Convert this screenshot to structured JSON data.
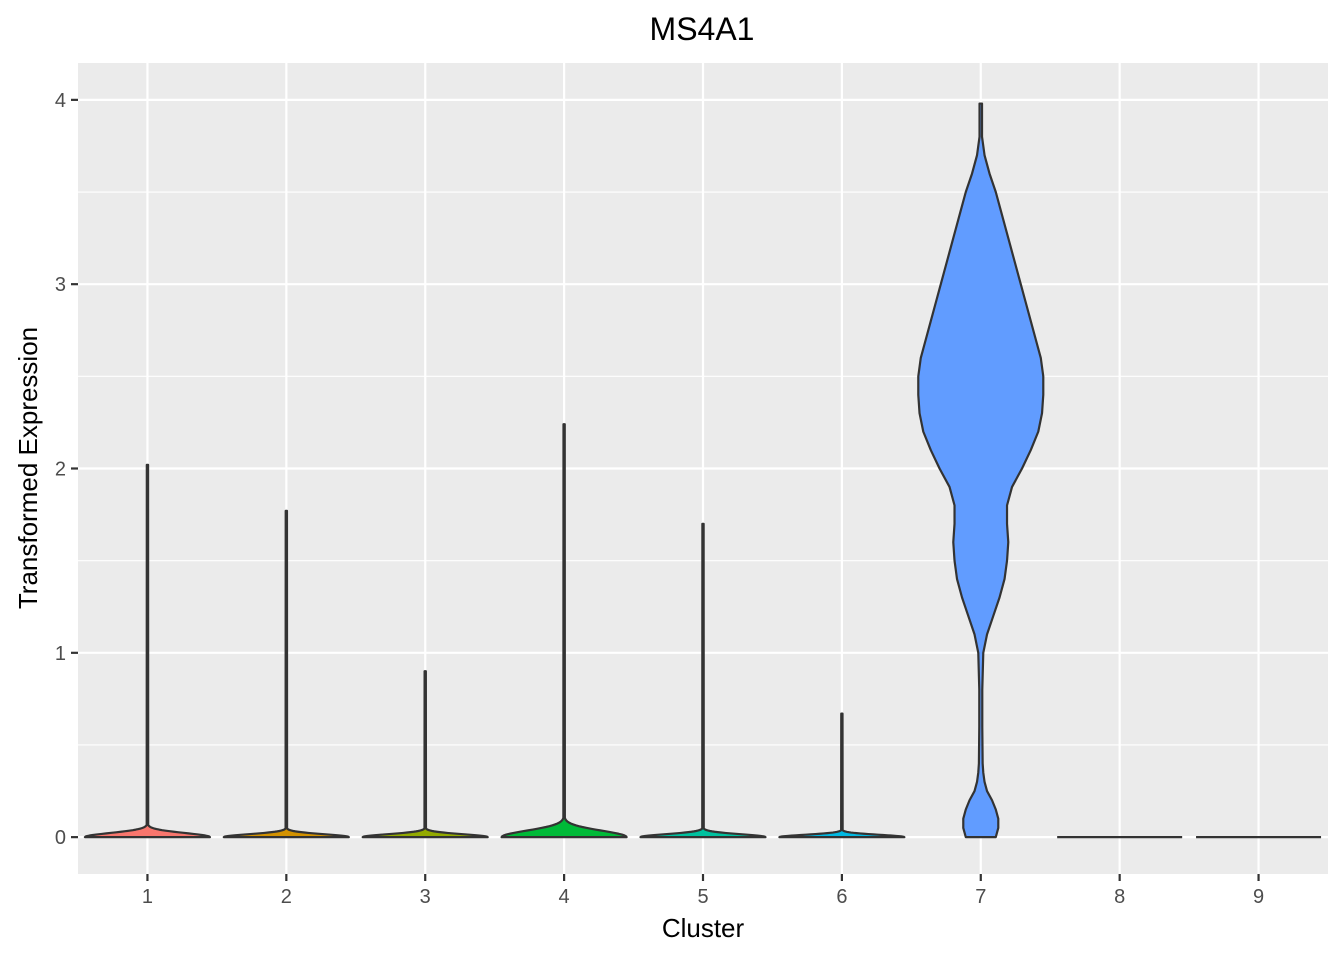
{
  "chart_data": {
    "type": "violin",
    "title": "MS4A1",
    "xlabel": "Cluster",
    "ylabel": "Transformed Expression",
    "ylim": [
      -0.2,
      4.2
    ],
    "yticks": [
      0,
      1,
      2,
      3,
      4
    ],
    "categories": [
      "1",
      "2",
      "3",
      "4",
      "5",
      "6",
      "7",
      "8",
      "9"
    ],
    "grid": true,
    "background": "#EBEBEB",
    "colors": [
      "#F8766D",
      "#D39200",
      "#93AA00",
      "#00BA38",
      "#00C19F",
      "#00B9E3",
      "#619CFF",
      "#DB72FB",
      "#FF61C3"
    ],
    "violins": [
      {
        "cluster": "1",
        "max": 2.02,
        "peak_height": 0.07,
        "spread": 0.06
      },
      {
        "cluster": "2",
        "max": 1.77,
        "peak_height": 0.05,
        "spread": 0.05
      },
      {
        "cluster": "3",
        "max": 0.9,
        "peak_height": 0.05,
        "spread": 0.05
      },
      {
        "cluster": "4",
        "max": 2.24,
        "peak_height": 0.11,
        "spread": 0.07
      },
      {
        "cluster": "5",
        "max": 1.7,
        "peak_height": 0.05,
        "spread": 0.05
      },
      {
        "cluster": "6",
        "max": 0.67,
        "peak_height": 0.04,
        "spread": 0.05
      },
      {
        "cluster": "7",
        "max": 3.98,
        "min": 0.0,
        "profile": [
          [
            0.0,
            0.12
          ],
          [
            0.05,
            0.14
          ],
          [
            0.1,
            0.14
          ],
          [
            0.15,
            0.12
          ],
          [
            0.2,
            0.09
          ],
          [
            0.25,
            0.05
          ],
          [
            0.3,
            0.03
          ],
          [
            0.35,
            0.02
          ],
          [
            0.4,
            0.015
          ],
          [
            0.6,
            0.012
          ],
          [
            0.8,
            0.012
          ],
          [
            1.0,
            0.02
          ],
          [
            1.1,
            0.05
          ],
          [
            1.2,
            0.1
          ],
          [
            1.3,
            0.15
          ],
          [
            1.4,
            0.19
          ],
          [
            1.5,
            0.21
          ],
          [
            1.6,
            0.22
          ],
          [
            1.7,
            0.21
          ],
          [
            1.8,
            0.21
          ],
          [
            1.9,
            0.25
          ],
          [
            2.0,
            0.33
          ],
          [
            2.1,
            0.4
          ],
          [
            2.2,
            0.46
          ],
          [
            2.3,
            0.49
          ],
          [
            2.4,
            0.5
          ],
          [
            2.5,
            0.5
          ],
          [
            2.6,
            0.48
          ],
          [
            2.7,
            0.44
          ],
          [
            2.8,
            0.4
          ],
          [
            2.9,
            0.36
          ],
          [
            3.0,
            0.32
          ],
          [
            3.1,
            0.28
          ],
          [
            3.2,
            0.24
          ],
          [
            3.3,
            0.2
          ],
          [
            3.4,
            0.16
          ],
          [
            3.5,
            0.12
          ],
          [
            3.6,
            0.07
          ],
          [
            3.7,
            0.03
          ],
          [
            3.8,
            0.01
          ],
          [
            3.98,
            0.01
          ]
        ]
      },
      {
        "cluster": "8",
        "max": 0.0,
        "flat": true
      },
      {
        "cluster": "9",
        "max": 0.0,
        "flat": true
      }
    ]
  }
}
